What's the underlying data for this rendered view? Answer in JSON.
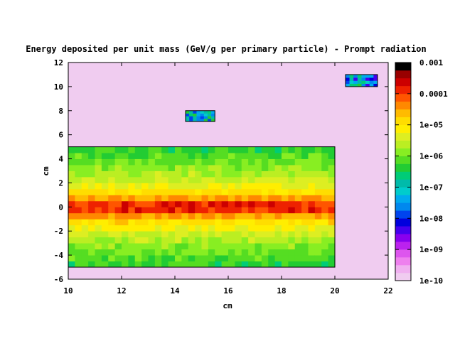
{
  "chart_data": {
    "type": "heatmap",
    "title": "Energy deposited per unit mass (GeV/g per primary particle) - Prompt radiation",
    "xlabel": "cm",
    "ylabel": "cm",
    "xlim": [
      10,
      22
    ],
    "ylim": [
      -6,
      12
    ],
    "x_ticks": [
      "10",
      "12",
      "14",
      "16",
      "18",
      "20",
      "22"
    ],
    "y_ticks": [
      "-6",
      "-4",
      "-2",
      "0",
      "2",
      "4",
      "6",
      "8",
      "10",
      "12"
    ],
    "background_color": "#f0ccf0",
    "colorbar": {
      "scale": "log",
      "range": [
        1e-10,
        0.001
      ],
      "tick_labels": [
        "1e-10",
        "1e-09",
        "1e-08",
        "1e-07",
        "1e-06",
        "1e-05",
        "0.0001",
        "0.001"
      ],
      "colors": [
        "#f0ccf0",
        "#f0b0f0",
        "#ee80ee",
        "#dd55ee",
        "#bb22ee",
        "#8800ee",
        "#4400ee",
        "#0000dd",
        "#0044ee",
        "#0088ee",
        "#00aaee",
        "#00cccc",
        "#00bbaa",
        "#00cc77",
        "#22cc33",
        "#55dd22",
        "#88ee22",
        "#bbee22",
        "#ddee22",
        "#ffee00",
        "#ffdd00",
        "#ffbb00",
        "#ff8800",
        "#ff5500",
        "#ee2200",
        "#cc0000",
        "#990000",
        "#000000"
      ]
    },
    "regions": [
      {
        "x": [
          10,
          20
        ],
        "y": [
          -5,
          5
        ],
        "description": "main block",
        "log10_peak_value": -3.6,
        "peak_at_y": 0,
        "profile_log10": [
          {
            "abs_y": 0,
            "log10_value": -3.6
          },
          {
            "abs_y": 0.5,
            "log10_value": -4.2
          },
          {
            "abs_y": 1,
            "log10_value": -4.8
          },
          {
            "abs_y": 2,
            "log10_value": -5.4
          },
          {
            "abs_y": 3,
            "log10_value": -5.8
          },
          {
            "abs_y": 5,
            "log10_value": -6.4
          }
        ]
      },
      {
        "x": [
          14.4,
          15.5
        ],
        "y": [
          7.1,
          8.0
        ],
        "description": "small block",
        "log10_value_range": [
          -8.0,
          -6.2
        ]
      },
      {
        "x": [
          20.4,
          21.6
        ],
        "y": [
          10.0,
          11.0
        ],
        "description": "small block",
        "log10_value_range": [
          -8.5,
          -6.2
        ]
      }
    ]
  }
}
